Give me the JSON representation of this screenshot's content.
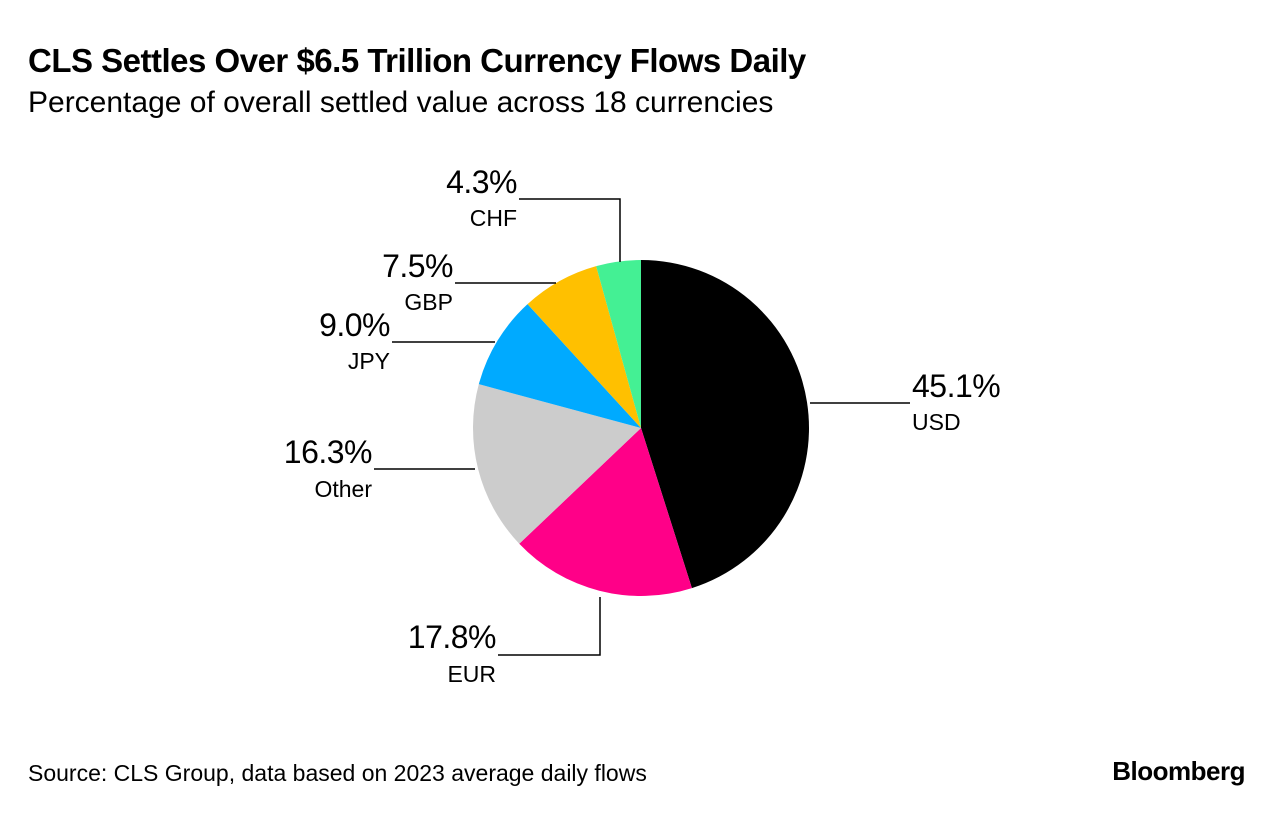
{
  "chart_data": {
    "type": "pie",
    "title": "CLS Settles Over $6.5 Trillion Currency Flows Daily",
    "subtitle": "Percentage of overall settled value across 18 currencies",
    "slices": [
      {
        "label": "USD",
        "value": 45.1,
        "value_label": "45.1%",
        "color": "#000000"
      },
      {
        "label": "EUR",
        "value": 17.8,
        "value_label": "17.8%",
        "color": "#ff0088"
      },
      {
        "label": "Other",
        "value": 16.3,
        "value_label": "16.3%",
        "color": "#cccccc"
      },
      {
        "label": "JPY",
        "value": 9.0,
        "value_label": "9.0%",
        "color": "#00aaff"
      },
      {
        "label": "GBP",
        "value": 7.5,
        "value_label": "7.5%",
        "color": "#ffc000"
      },
      {
        "label": "CHF",
        "value": 4.3,
        "value_label": "4.3%",
        "color": "#44f094"
      }
    ],
    "start": "12 o'clock",
    "direction": "clockwise"
  },
  "footer": {
    "source": "Source: CLS Group, data based on 2023 average daily flows",
    "brand": "Bloomberg"
  }
}
